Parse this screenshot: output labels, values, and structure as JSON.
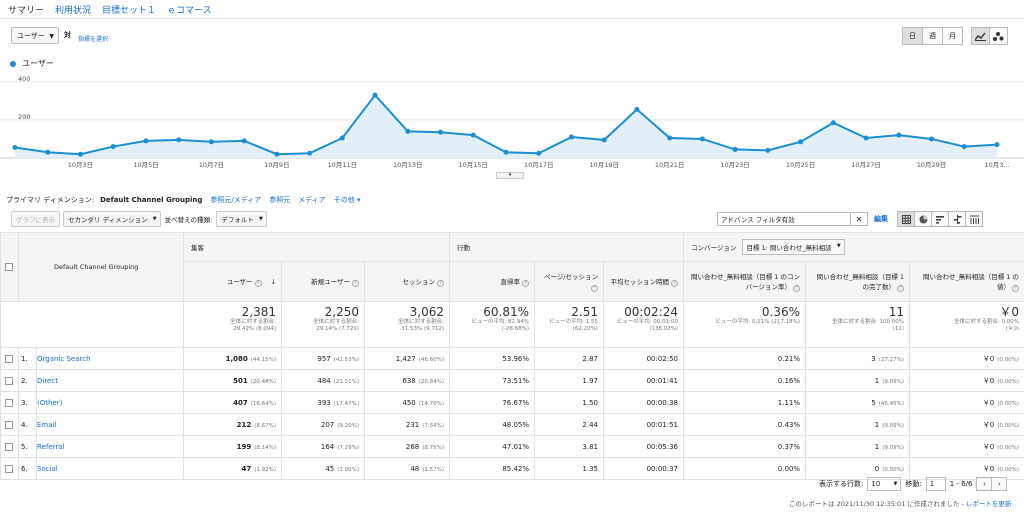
{
  "tabs": [
    "サマリー",
    "利用状況",
    "目標セット１",
    "ｅコマース"
  ],
  "metric_select": "ユーザー",
  "vs_label": "対",
  "choose_metric": "指標を選択",
  "periods": [
    "日",
    "週",
    "月"
  ],
  "view_icons": [
    "line-chart-icon",
    "motion-chart-icon"
  ],
  "legend": "ユーザー",
  "chart_data": {
    "type": "area",
    "series": [
      {
        "name": "ユーザー",
        "x": [
          "10月1日",
          "10月2日",
          "10月3日",
          "10月4日",
          "10月5日",
          "10月6日",
          "10月7日",
          "10月8日",
          "10月9日",
          "10月10日",
          "10月11日",
          "10月12日",
          "10月13日",
          "10月14日",
          "10月15日",
          "10月16日",
          "10月17日",
          "10月18日",
          "10月19日",
          "10月20日",
          "10月21日",
          "10月22日",
          "10月23日",
          "10月24日",
          "10月25日",
          "10月26日",
          "10月27日",
          "10月28日",
          "10月29日",
          "10月30日",
          "10月31日"
        ],
        "values": [
          55,
          30,
          20,
          60,
          90,
          95,
          85,
          90,
          20,
          25,
          105,
          330,
          140,
          135,
          120,
          30,
          25,
          110,
          95,
          255,
          105,
          100,
          45,
          40,
          85,
          185,
          105,
          120,
          100,
          60,
          70
        ]
      }
    ],
    "ylim": [
      0,
      420
    ],
    "yticks": [
      "400",
      "200"
    ],
    "xtick_labels": [
      "10月3日",
      "10月5日",
      "10月7日",
      "10月9日",
      "10月11日",
      "10月13日",
      "10月15日",
      "10月17日",
      "10月19日",
      "10月21日",
      "10月23日",
      "10月25日",
      "10月27日",
      "10月29日",
      "10月3..."
    ],
    "grid": true,
    "color": "#1a8fd1"
  },
  "dimension": {
    "label": "プライマリ ディメンション:",
    "current": "Default Channel Grouping",
    "links": [
      "参照元/メディア",
      "参照元",
      "メディア",
      "その他 ▾"
    ]
  },
  "controls": {
    "graph_button": "グラフに表示",
    "secondary_dim": "セカンダリ ディメンション",
    "sort_label": "並べ替えの種類:",
    "sort_value": "デフォルト",
    "filter_value": "アドバンス フィルタ有効",
    "edit": "編集"
  },
  "table": {
    "dim_header": "Default Channel Grouping",
    "groups": {
      "acquisition": "集客",
      "behavior": "行動",
      "conversion": "コンバージョン",
      "goal_select": "目標 1: 問い合わせ_無料相談"
    },
    "columns": [
      "ユーザー",
      "新規ユーザー",
      "セッション",
      "直帰率",
      "ページ/セッション",
      "平均セッション時間",
      "問い合わせ_無料相談（目標 1 のコンバージョン率）",
      "問い合わせ_無料相談（目標 1 の完了数）",
      "問い合わせ_無料相談（目標 1 の値）"
    ],
    "totals": [
      {
        "v": "2,381",
        "s1": "全体に対する割合:",
        "s2": "29.42% (8,094)"
      },
      {
        "v": "2,250",
        "s1": "全体に対する割合:",
        "s2": "29.14% (7,721)"
      },
      {
        "v": "3,062",
        "s1": "全体に対する割合:",
        "s2": "31.53% (9,712)"
      },
      {
        "v": "60.81%",
        "s1": "ビューの平均: 82.94%",
        "s2": "(-26.68%)"
      },
      {
        "v": "2.51",
        "s1": "ビューの平均: 1.55",
        "s2": "(62.20%)"
      },
      {
        "v": "00:02:24",
        "s1": "ビューの平均: 00:01:00",
        "s2": "(138.02%)"
      },
      {
        "v": "0.36%",
        "s1": "ビューの平均: 0.11% (217.18%)",
        "s2": ""
      },
      {
        "v": "11",
        "s1": "全体に対する割合: 100.00%",
        "s2": "(11)"
      },
      {
        "v": "￥0",
        "s1": "全体に対する割合: 0.00%",
        "s2": "(￥0)"
      }
    ],
    "rows": [
      {
        "idx": "1.",
        "name": "Organic Search",
        "users": "1,080",
        "users_pct": "(44.15%)",
        "new": "957",
        "new_pct": "(42.53%)",
        "sess": "1,427",
        "sess_pct": "(46.60%)",
        "bounce": "53.96%",
        "pps": "2.87",
        "dur": "00:02:50",
        "cvr": "0.21%",
        "comp": "3",
        "comp_pct": "(27.27%)",
        "val": "￥0",
        "val_pct": "(0.00%)"
      },
      {
        "idx": "2.",
        "name": "Direct",
        "users": "501",
        "users_pct": "(20.48%)",
        "new": "484",
        "new_pct": "(21.51%)",
        "sess": "638",
        "sess_pct": "(20.84%)",
        "bounce": "73.51%",
        "pps": "1.97",
        "dur": "00:01:41",
        "cvr": "0.16%",
        "comp": "1",
        "comp_pct": "(9.09%)",
        "val": "￥0",
        "val_pct": "(0.00%)"
      },
      {
        "idx": "3.",
        "name": "(Other)",
        "users": "407",
        "users_pct": "(16.64%)",
        "new": "393",
        "new_pct": "(17.47%)",
        "sess": "450",
        "sess_pct": "(14.70%)",
        "bounce": "76.67%",
        "pps": "1.50",
        "dur": "00:00:38",
        "cvr": "1.11%",
        "comp": "5",
        "comp_pct": "(45.45%)",
        "val": "￥0",
        "val_pct": "(0.00%)"
      },
      {
        "idx": "4.",
        "name": "Email",
        "users": "212",
        "users_pct": "(8.67%)",
        "new": "207",
        "new_pct": "(9.20%)",
        "sess": "231",
        "sess_pct": "(7.54%)",
        "bounce": "48.05%",
        "pps": "2.44",
        "dur": "00:01:51",
        "cvr": "0.43%",
        "comp": "1",
        "comp_pct": "(9.09%)",
        "val": "￥0",
        "val_pct": "(0.00%)"
      },
      {
        "idx": "5.",
        "name": "Referral",
        "users": "199",
        "users_pct": "(8.14%)",
        "new": "164",
        "new_pct": "(7.29%)",
        "sess": "268",
        "sess_pct": "(8.75%)",
        "bounce": "47.01%",
        "pps": "3.81",
        "dur": "00:05:36",
        "cvr": "0.37%",
        "comp": "1",
        "comp_pct": "(9.09%)",
        "val": "￥0",
        "val_pct": "(0.00%)"
      },
      {
        "idx": "6.",
        "name": "Social",
        "users": "47",
        "users_pct": "(1.92%)",
        "new": "45",
        "new_pct": "(2.00%)",
        "sess": "48",
        "sess_pct": "(1.57%)",
        "bounce": "85.42%",
        "pps": "1.35",
        "dur": "00:00:37",
        "cvr": "0.00%",
        "comp": "0",
        "comp_pct": "(0.00%)",
        "val": "￥0",
        "val_pct": "(0.00%)"
      }
    ]
  },
  "footer": {
    "rows_label": "表示する行数:",
    "rows_value": "10",
    "goto_label": "移動:",
    "goto_value": "1",
    "range": "1 - 6/6",
    "report_note": "このレポートは 2021/11/30 12:35:01 に作成されました -",
    "refresh_link": "レポートを更新"
  }
}
